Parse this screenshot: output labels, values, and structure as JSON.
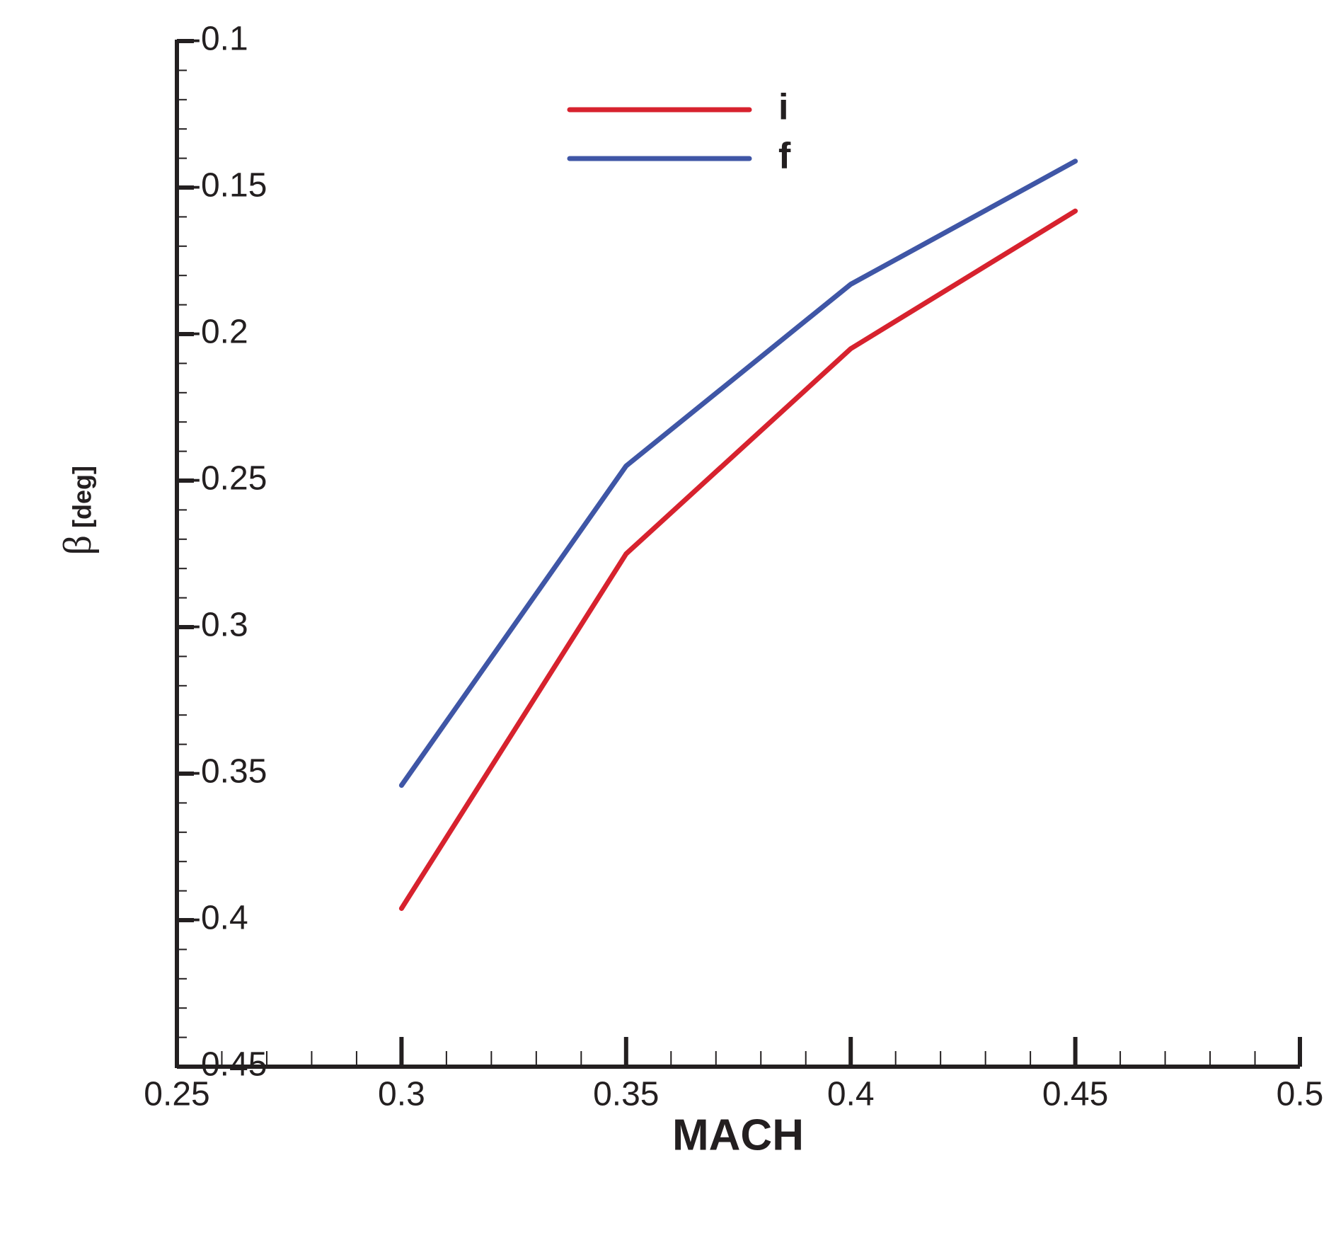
{
  "chart_data": {
    "type": "line",
    "x_label": "MACH",
    "y_label": "β",
    "y_label_unit": "[deg]",
    "x": [
      0.3,
      0.35,
      0.4,
      0.45
    ],
    "series": [
      {
        "name": "i",
        "color": "#d7222e",
        "values": [
          -0.396,
          -0.275,
          -0.205,
          -0.158
        ]
      },
      {
        "name": "f",
        "color": "#3f56a6",
        "values": [
          -0.354,
          -0.245,
          -0.183,
          -0.141
        ]
      }
    ],
    "xlim": [
      0.25,
      0.5
    ],
    "xticks": [
      0.25,
      0.3,
      0.35,
      0.4,
      0.45,
      0.5
    ],
    "xminorticks": [
      0.26,
      0.27,
      0.28,
      0.29,
      0.31,
      0.32,
      0.33,
      0.34,
      0.36,
      0.37,
      0.38,
      0.39,
      0.41,
      0.42,
      0.43,
      0.44,
      0.46,
      0.47,
      0.48,
      0.49
    ],
    "ylim": [
      -0.45,
      -0.1
    ],
    "yticks": [
      -0.1,
      -0.15,
      -0.2,
      -0.25,
      -0.3,
      -0.35,
      -0.4,
      -0.45
    ],
    "yminorticks": [
      -0.11,
      -0.12,
      -0.13,
      -0.14,
      -0.16,
      -0.17,
      -0.18,
      -0.19,
      -0.21,
      -0.22,
      -0.23,
      -0.24,
      -0.26,
      -0.27,
      -0.28,
      -0.29,
      -0.31,
      -0.32,
      -0.33,
      -0.34,
      -0.36,
      -0.37,
      -0.38,
      -0.39,
      -0.41,
      -0.42,
      -0.43,
      -0.44
    ],
    "legend": "top"
  }
}
